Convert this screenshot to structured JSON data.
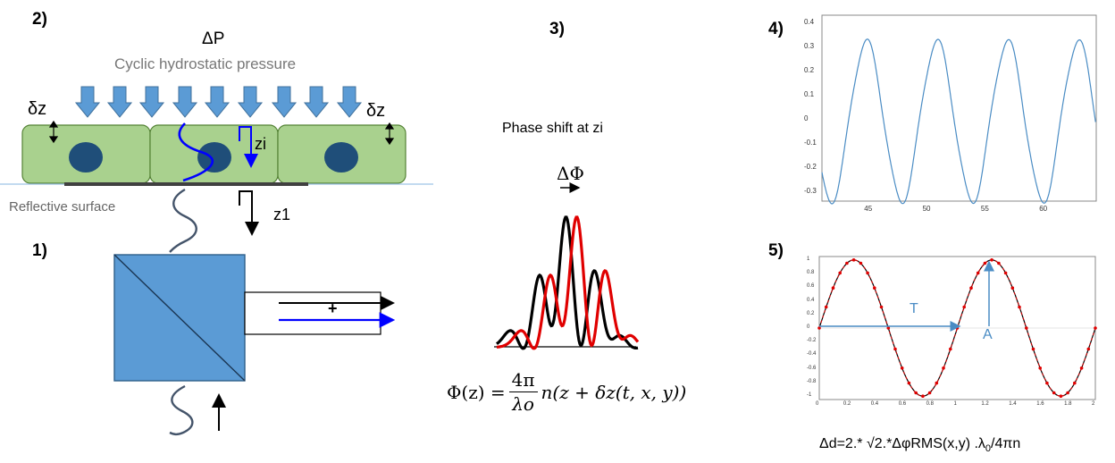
{
  "panel_labels": {
    "p1": "1)",
    "p2": "2)",
    "p3": "3)",
    "p4": "4)",
    "p5": "5)"
  },
  "pressure": {
    "symbol": "ΔP",
    "label": "Cyclic hydrostatic pressure"
  },
  "cells": {
    "dz_left": "δz",
    "dz_right": "δz",
    "zi": "zi",
    "z1": "z1",
    "reflective": "Reflective surface"
  },
  "beam_splitter": {
    "plus": "+"
  },
  "phase": {
    "title": "Phase shift  at zi",
    "delta_phi": "ΔΦ",
    "formula": {
      "lhs": "Φ(z) = ",
      "num": "4π",
      "den": "λo",
      "rhs": "n(z + δz(t, x, y))"
    }
  },
  "chart4": {
    "x_ticks": [
      "45",
      "50",
      "55",
      "60"
    ],
    "y_ticks": [
      "0.4",
      "0.3",
      "0.2",
      "0.1",
      "0",
      "-0.1",
      "-0.2",
      "-0.3"
    ]
  },
  "chart5": {
    "x_ticks": [
      "0",
      "0.2",
      "0.4",
      "0.6",
      "0.8",
      "1",
      "1.2",
      "1.4",
      "1.6",
      "1.8",
      "2"
    ],
    "y_ticks": [
      "1",
      "0.8",
      "0.6",
      "0.4",
      "0.2",
      "0",
      "-0.2",
      "-0.4",
      "-0.6",
      "-0.8",
      "-1"
    ],
    "T": "T",
    "A": "A"
  },
  "dd_formula": {
    "main": "Δd=2.* √2.*ΔφRMS(x,y) .λ",
    "sub": "0",
    "tail": "/4πn"
  },
  "colors": {
    "arrow_blue": "#5b9bd5",
    "cell_green": "#a9d18e",
    "nucleus": "#1f4e79",
    "trace": "#4a8cc4",
    "red": "#e00000"
  }
}
